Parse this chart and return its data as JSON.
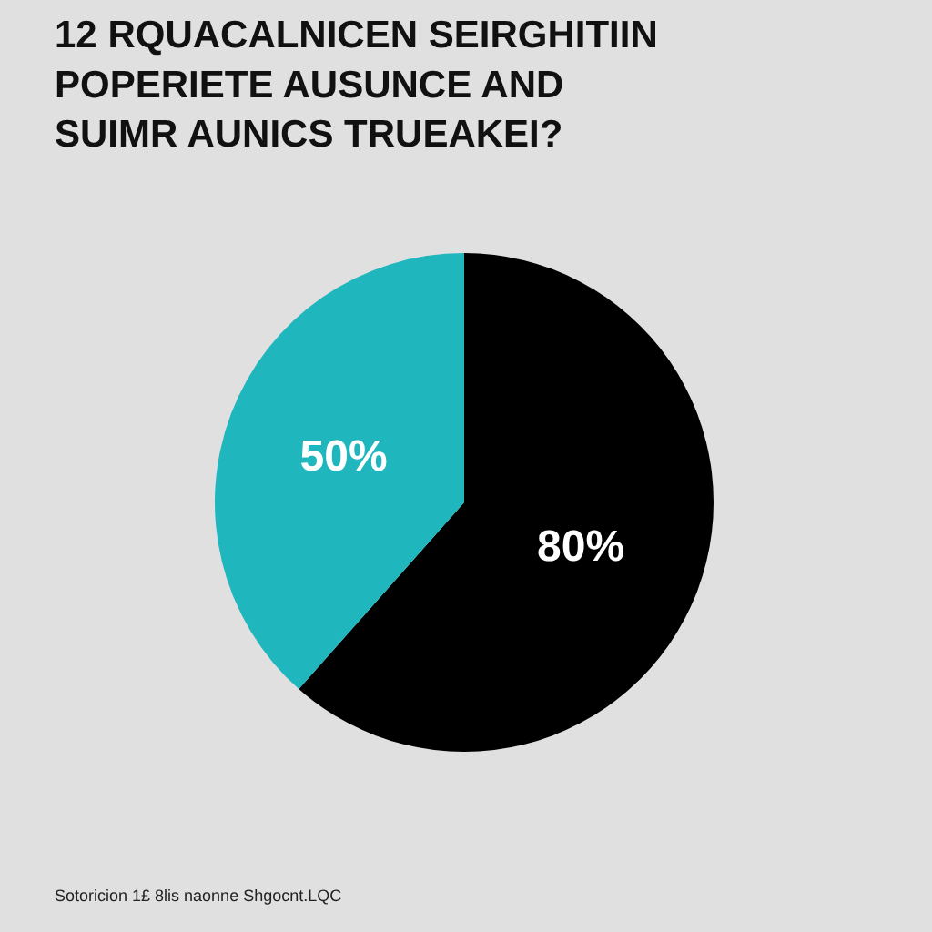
{
  "chart_data": {
    "type": "pie",
    "title": "12 RQUACALNICEN SEIRGHITIIN\nPOPERIETE AUSUNCE AND\nSUIMR AUNICS TRUEAKEI?",
    "categories": [
      null,
      null
    ],
    "values": [
      80,
      50
    ],
    "value_labels": [
      "80%",
      "50%"
    ],
    "colors": [
      "#000000",
      "#20b6be"
    ],
    "annotations": [
      "Sotoricion 1£ 8lis naonne Shgocnt.LQC"
    ]
  }
}
